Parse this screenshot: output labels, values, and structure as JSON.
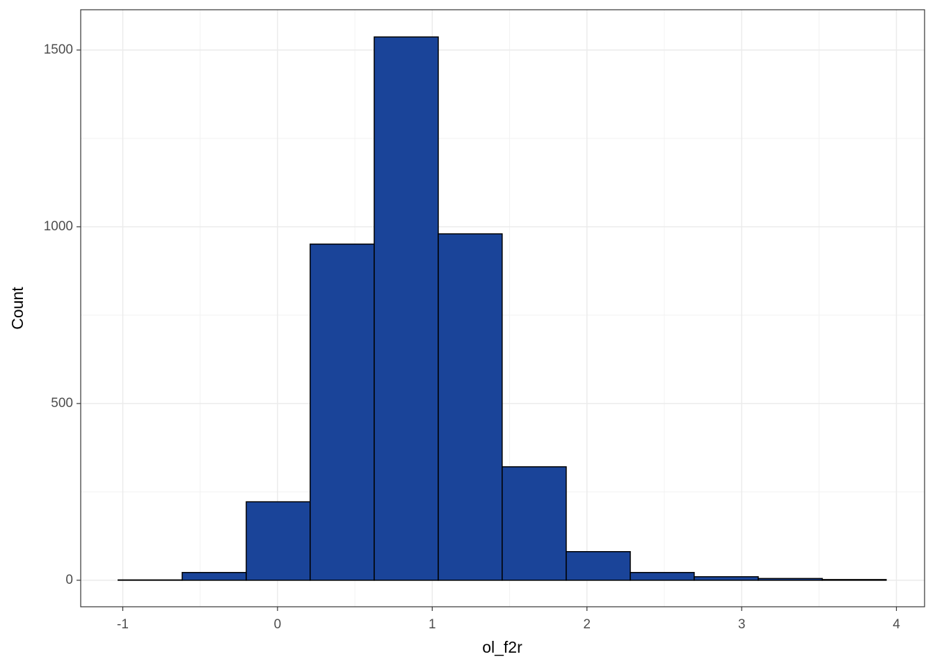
{
  "chart_data": {
    "type": "histogram",
    "x_label": "ol_f2r",
    "y_label": "Count",
    "bins": [
      -1.03,
      -0.616,
      -0.202,
      0.211,
      0.625,
      1.039,
      1.452,
      1.866,
      2.28,
      2.693,
      3.107,
      3.521,
      3.934
    ],
    "values": [
      1,
      22,
      222,
      951,
      1537,
      980,
      321,
      81,
      22,
      10,
      5,
      2
    ],
    "color": "#1a4499",
    "edge_color": "#000000",
    "xlim": [
      -1.272,
      4.182
    ],
    "ylim": [
      -75,
      1614
    ],
    "xticks": [
      -1,
      0,
      1,
      2,
      3,
      4
    ],
    "yticks": [
      0,
      500,
      1000,
      1500
    ],
    "minor_xticks": [
      -0.5,
      0.5,
      1.5,
      2.5,
      3.5
    ],
    "minor_yticks": [
      250,
      750,
      1250
    ],
    "grid": true
  }
}
